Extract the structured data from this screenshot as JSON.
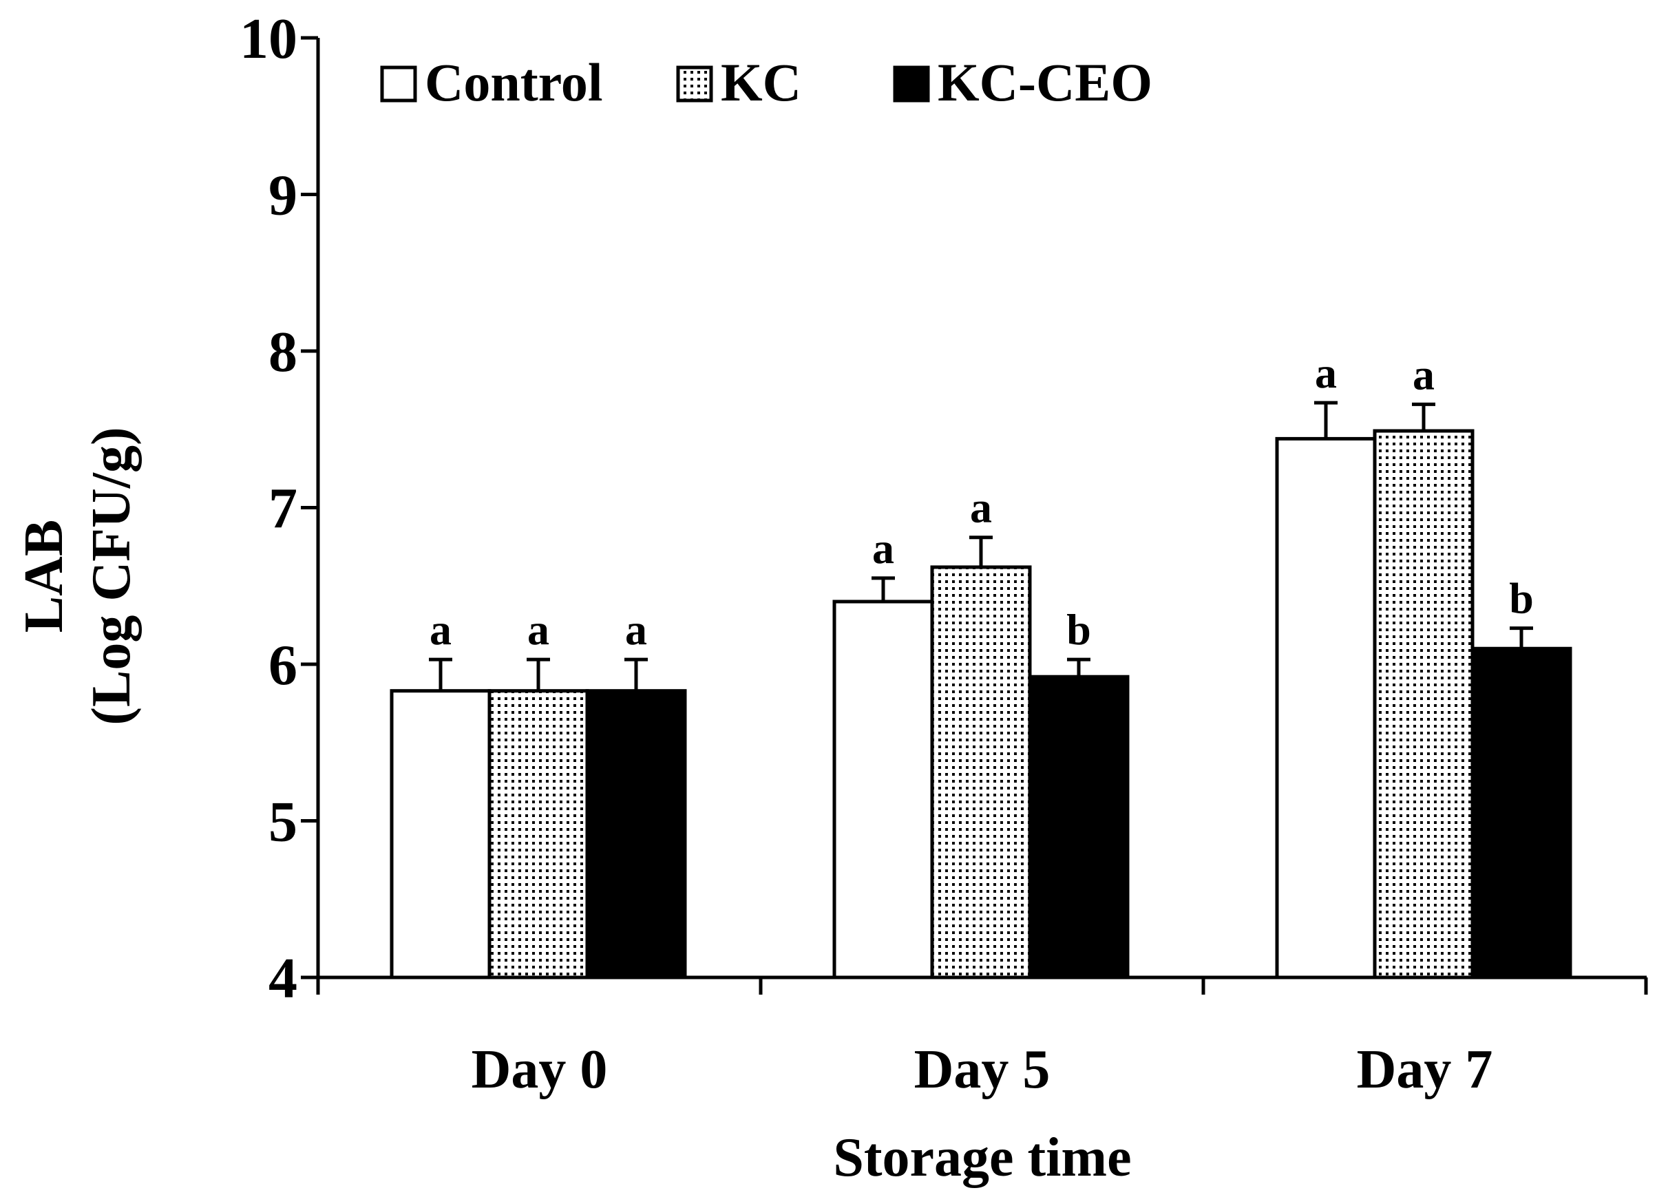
{
  "chart_data": {
    "type": "bar",
    "title": "",
    "xlabel": "Storage time",
    "ylabel_lines": [
      "LAB",
      "(Log CFU/g)"
    ],
    "ylim": [
      4,
      10
    ],
    "yticks": [
      4,
      5,
      6,
      7,
      8,
      9,
      10
    ],
    "categories": [
      "Day 0",
      "Day 5",
      "Day 7"
    ],
    "series": [
      {
        "name": "Control",
        "fill": "white",
        "values": [
          5.83,
          6.4,
          7.44
        ],
        "errors": [
          0.2,
          0.15,
          0.23
        ],
        "labels": [
          "a",
          "a",
          "a"
        ]
      },
      {
        "name": "KC",
        "fill": "dotted",
        "values": [
          5.83,
          6.62,
          7.49
        ],
        "errors": [
          0.2,
          0.19,
          0.17
        ],
        "labels": [
          "a",
          "a",
          "a"
        ]
      },
      {
        "name": "KC-CEO",
        "fill": "black",
        "values": [
          5.83,
          5.92,
          6.1
        ],
        "errors": [
          0.2,
          0.11,
          0.13
        ],
        "labels": [
          "a",
          "b",
          "b"
        ]
      }
    ],
    "legend_position": "top-left",
    "grid": false
  },
  "colors": {
    "axis": "#000000",
    "control_fill": "#ffffff",
    "kc_fill": "#ffffff",
    "kc_dot": "#000000",
    "kcceo_fill": "#000000",
    "background": "#ffffff"
  }
}
